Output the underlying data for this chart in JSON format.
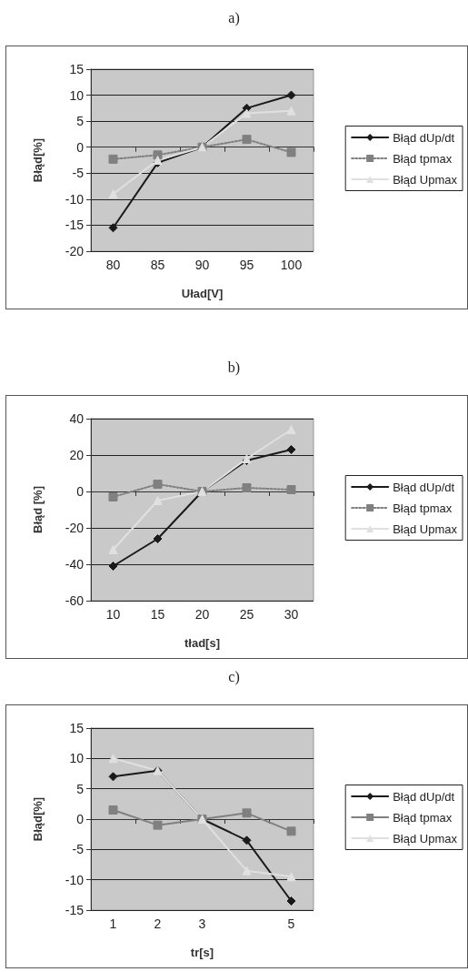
{
  "chart_data": [
    {
      "type": "line",
      "title": "a)",
      "xlabel": "Uład[V]",
      "ylabel": "Błąd[%]",
      "categories": [
        "80",
        "85",
        "90",
        "95",
        "100"
      ],
      "series": [
        {
          "name": "Błąd dUp/dt",
          "color": "#1a1a1a",
          "marker": "diamond",
          "line_style": "solid",
          "values": [
            -15.5,
            -3,
            0,
            7.5,
            10
          ]
        },
        {
          "name": "Błąd tpmax",
          "color": "#808080",
          "marker": "square",
          "line_style": "dotted",
          "values": [
            -2.3,
            -1.5,
            0,
            1.5,
            -1
          ]
        },
        {
          "name": "Błąd Upmax",
          "color": "#e0e0e0",
          "marker": "triangle",
          "line_style": "solid",
          "values": [
            -9,
            -2.5,
            0,
            6.5,
            7
          ]
        }
      ],
      "ylim": [
        -20,
        15
      ],
      "yticks": [
        -20,
        -15,
        -10,
        -5,
        0,
        5,
        10,
        15
      ],
      "grid": "y",
      "legend": "right"
    },
    {
      "type": "line",
      "title": "b)",
      "xlabel": "tład[s]",
      "ylabel": "Błąd [%]",
      "categories": [
        "10",
        "15",
        "20",
        "25",
        "30"
      ],
      "series": [
        {
          "name": "Błąd dUp/dt",
          "color": "#1a1a1a",
          "marker": "diamond",
          "line_style": "solid",
          "values": [
            -41,
            -26,
            0,
            17,
            23
          ]
        },
        {
          "name": "Błąd tpmax",
          "color": "#808080",
          "marker": "square",
          "line_style": "dotted",
          "values": [
            -3,
            4,
            0,
            2,
            1
          ]
        },
        {
          "name": "Błąd Upmax",
          "color": "#e0e0e0",
          "marker": "triangle",
          "line_style": "solid",
          "values": [
            -32,
            -5,
            0,
            18,
            34
          ]
        }
      ],
      "ylim": [
        -60,
        40
      ],
      "yticks": [
        -60,
        -40,
        -20,
        0,
        20,
        40
      ],
      "grid": "y",
      "legend": "right"
    },
    {
      "type": "line",
      "title": "c)",
      "xlabel": "tr[s]",
      "ylabel": "Błąd[%]",
      "categories": [
        "1",
        "2",
        "3",
        null,
        "5"
      ],
      "series": [
        {
          "name": "Błąd dUp/dt",
          "color": "#1a1a1a",
          "marker": "diamond",
          "line_style": "solid",
          "values": [
            7,
            8,
            0,
            -3.5,
            -13.5
          ]
        },
        {
          "name": "Błąd tpmax",
          "color": "#808080",
          "marker": "square",
          "line_style": "solid",
          "values": [
            1.5,
            -1,
            0,
            1,
            -2
          ]
        },
        {
          "name": "Błąd Upmax",
          "color": "#e0e0e0",
          "marker": "triangle",
          "line_style": "solid",
          "values": [
            10,
            8,
            0,
            -8.5,
            -9.5
          ]
        }
      ],
      "ylim": [
        -15,
        15
      ],
      "yticks": [
        -15,
        -10,
        -5,
        0,
        5,
        10,
        15
      ],
      "grid": "y",
      "legend": "right"
    }
  ]
}
